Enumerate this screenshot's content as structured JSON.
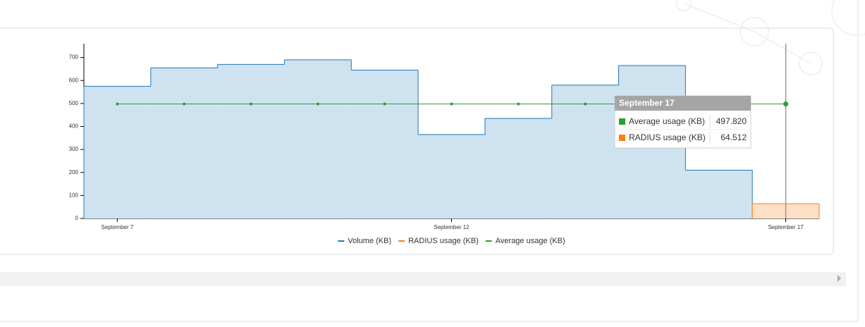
{
  "chart_data": {
    "type": "step",
    "categories": [
      "September 7",
      null,
      null,
      null,
      null,
      "September 12",
      null,
      null,
      null,
      null,
      "September 17"
    ],
    "series": [
      {
        "name": "Volume (KB)",
        "color": "#1f77b4",
        "fill": "#cfe2f0",
        "values": [
          575,
          655,
          670,
          690,
          645,
          365,
          435,
          580,
          665,
          210,
          null
        ]
      },
      {
        "name": "RADIUS usage (KB)",
        "color": "#ff7f0e",
        "fill": "#fde0c5",
        "values": [
          null,
          null,
          null,
          null,
          null,
          null,
          null,
          null,
          null,
          null,
          64.512
        ],
        "value_labels": [
          null,
          null,
          null,
          null,
          null,
          null,
          null,
          null,
          null,
          null,
          "64.512"
        ]
      },
      {
        "name": "Average usage (KB)",
        "color": "#2ca02c",
        "values": [
          497.82,
          497.82,
          497.82,
          497.82,
          497.82,
          497.82,
          497.82,
          497.82,
          497.82,
          497.82,
          497.82
        ],
        "value_labels": [
          null,
          null,
          null,
          null,
          null,
          null,
          null,
          null,
          null,
          null,
          "497.820"
        ]
      }
    ],
    "ylim": [
      0,
      760
    ],
    "yticks": [
      0,
      100,
      200,
      300,
      400,
      500,
      600,
      700
    ],
    "legend": "bottom",
    "tooltip_index": 10
  }
}
